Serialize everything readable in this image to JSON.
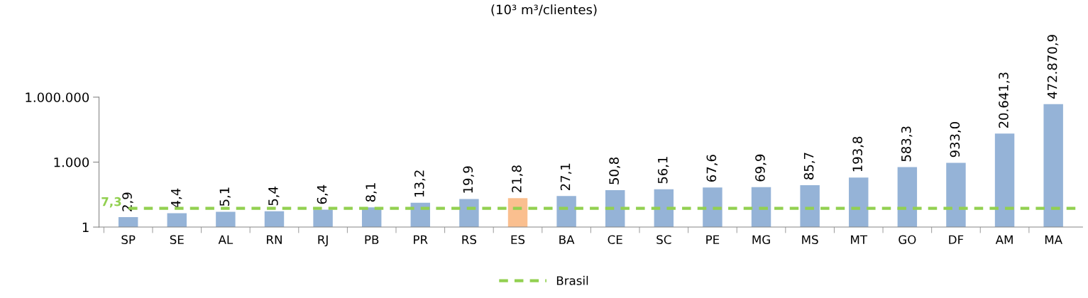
{
  "chart_data": {
    "type": "bar",
    "title": "(10³ m³/clientes)",
    "categories": [
      "SP",
      "SE",
      "AL",
      "RN",
      "RJ",
      "PB",
      "PR",
      "RS",
      "ES",
      "BA",
      "CE",
      "SC",
      "PE",
      "MG",
      "MS",
      "MT",
      "GO",
      "DF",
      "AM",
      "MA"
    ],
    "values": [
      2.9,
      4.4,
      5.1,
      5.4,
      6.4,
      8.1,
      13.2,
      19.9,
      21.8,
      27.1,
      50.8,
      56.1,
      67.6,
      69.9,
      85.7,
      193.8,
      583.3,
      933.0,
      20641.3,
      472870.9
    ],
    "value_labels": [
      "2,9",
      "4,4",
      "5,1",
      "5,4",
      "6,4",
      "8,1",
      "13,2",
      "19,9",
      "21,8",
      "27,1",
      "50,8",
      "56,1",
      "67,6",
      "69,9",
      "85,7",
      "193,8",
      "583,3",
      "933,0",
      "20.641,3",
      "472.870,9"
    ],
    "colors": [
      "#95b3d7",
      "#95b3d7",
      "#95b3d7",
      "#95b3d7",
      "#95b3d7",
      "#95b3d7",
      "#95b3d7",
      "#95b3d7",
      "#fabf8f",
      "#95b3d7",
      "#95b3d7",
      "#95b3d7",
      "#95b3d7",
      "#95b3d7",
      "#95b3d7",
      "#95b3d7",
      "#95b3d7",
      "#95b3d7",
      "#95b3d7",
      "#95b3d7"
    ],
    "log": "y",
    "ylim": [
      1,
      1000000
    ],
    "yticks": [
      {
        "value": 1,
        "label": "1"
      },
      {
        "value": 1000,
        "label": "1.000"
      },
      {
        "value": 1000000,
        "label": "1.000.000"
      }
    ],
    "ref_lines": [
      {
        "axis": "y",
        "value": 7.3,
        "label": "Brasil",
        "color": "#92d050",
        "line_style": "dashed"
      }
    ],
    "annotations": [
      "7,3"
    ],
    "grid": false,
    "legend": "bottom"
  }
}
